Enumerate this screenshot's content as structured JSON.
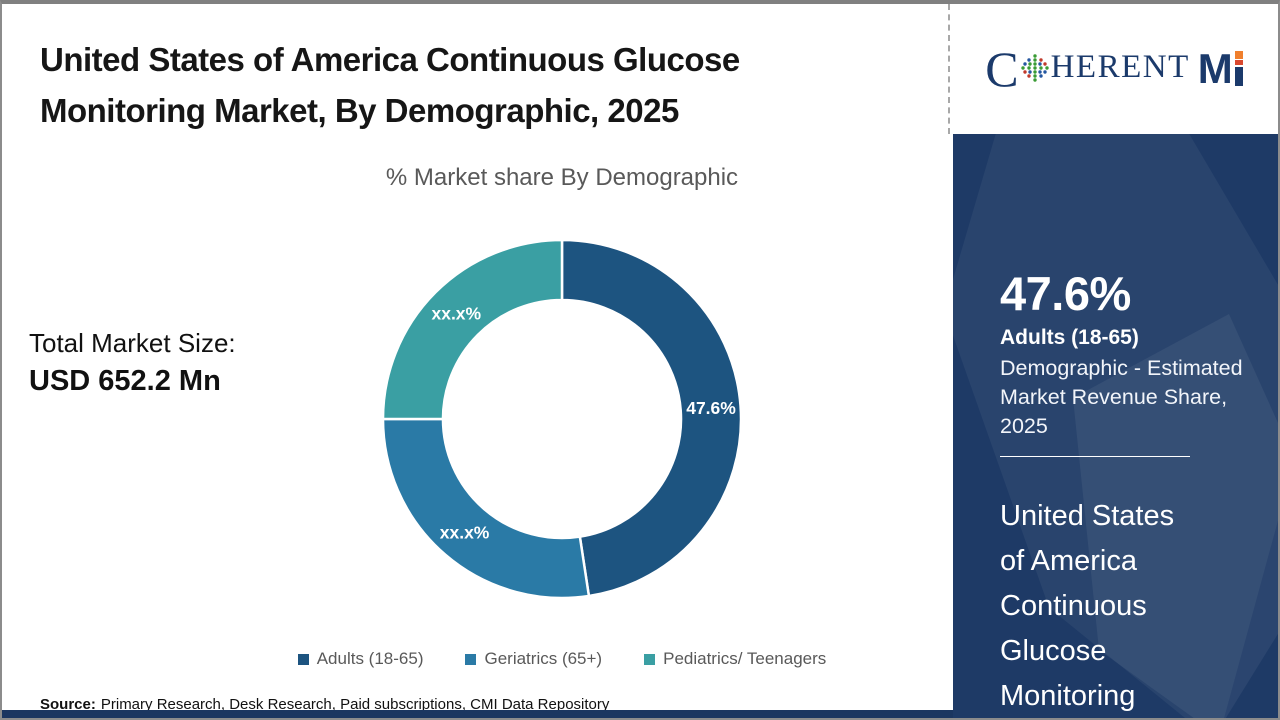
{
  "header": {
    "title": "United States of America Continuous Glucose Monitoring Market, By Demographic, 2025"
  },
  "logo": {
    "part1": "C",
    "part2": "HERENT",
    "part3": "M",
    "navy": "#1B3A6B",
    "accent_orange": "#F07F2D",
    "accent_red": "#D9482E"
  },
  "market": {
    "total_label": "Total Market Size:",
    "total_value": "USD 652.2 Mn"
  },
  "chart_data": {
    "type": "pie",
    "subtype": "donut",
    "title": "% Market share By Demographic",
    "categories": [
      "Adults (18-65)",
      "Geriatrics (65+)",
      "Pediatrics/ Teenagers"
    ],
    "values": [
      47.6,
      27.4,
      25.0
    ],
    "display_labels": [
      "47.6%",
      "xx.x%",
      "xx.x%"
    ],
    "colors": [
      "#1D5480",
      "#2A7AA6",
      "#3A9FA3"
    ],
    "start_angle": 0,
    "direction": "clockwise",
    "inner_radius_ratio": 0.665,
    "label_radius_ratio": 0.835,
    "legend_position": "bottom"
  },
  "sidebar": {
    "stat_value": "47.6%",
    "stat_segment": "Adults (18-65)",
    "stat_description": "Demographic - Estimated Market Revenue Share, 2025",
    "report_title": "United States of America Continuous Glucose Monitoring",
    "bg_color": "#1E3A66"
  },
  "footer": {
    "source_label": "Source:",
    "source_text": "Primary Research, Desk Research, Paid subscriptions, CMI Data Repository"
  }
}
